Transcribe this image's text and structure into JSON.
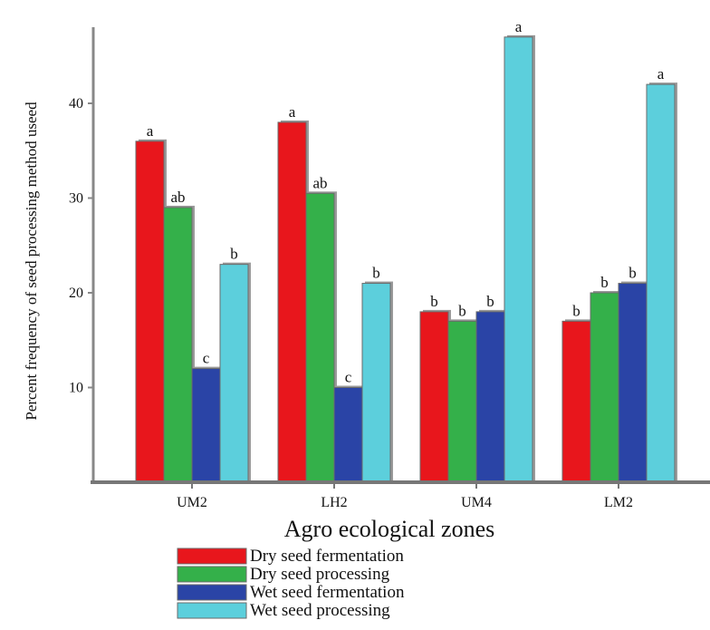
{
  "chart_data": {
    "type": "bar",
    "categories": [
      "UM2",
      "LH2",
      "UM4",
      "LM2"
    ],
    "series": [
      {
        "name": "Dry seed fermentation",
        "color": "#e8161c",
        "values": [
          36,
          38,
          18,
          17
        ],
        "labels": [
          "a",
          "a",
          "b",
          "b"
        ]
      },
      {
        "name": "Dry seed processing",
        "color": "#34b04a",
        "values": [
          29,
          30.5,
          17,
          20
        ],
        "labels": [
          "ab",
          "ab",
          "b",
          "b"
        ]
      },
      {
        "name": "Wet seed fermentation",
        "color": "#2a44a6",
        "values": [
          12,
          10,
          18,
          21
        ],
        "labels": [
          "c",
          "c",
          "b",
          "b"
        ]
      },
      {
        "name": "Wet seed processing",
        "color": "#5ccfdc",
        "values": [
          23,
          21,
          47,
          42
        ],
        "labels": [
          "b",
          "b",
          "a",
          "a"
        ]
      }
    ],
    "xlabel": "Agro ecological  zones",
    "ylabel": "Percent frequency of seed processing method useed",
    "yticks": [
      "10",
      "20",
      "30",
      "40"
    ],
    "ylim": [
      0,
      48
    ],
    "grid": false,
    "legend_position": "bottom-left"
  }
}
